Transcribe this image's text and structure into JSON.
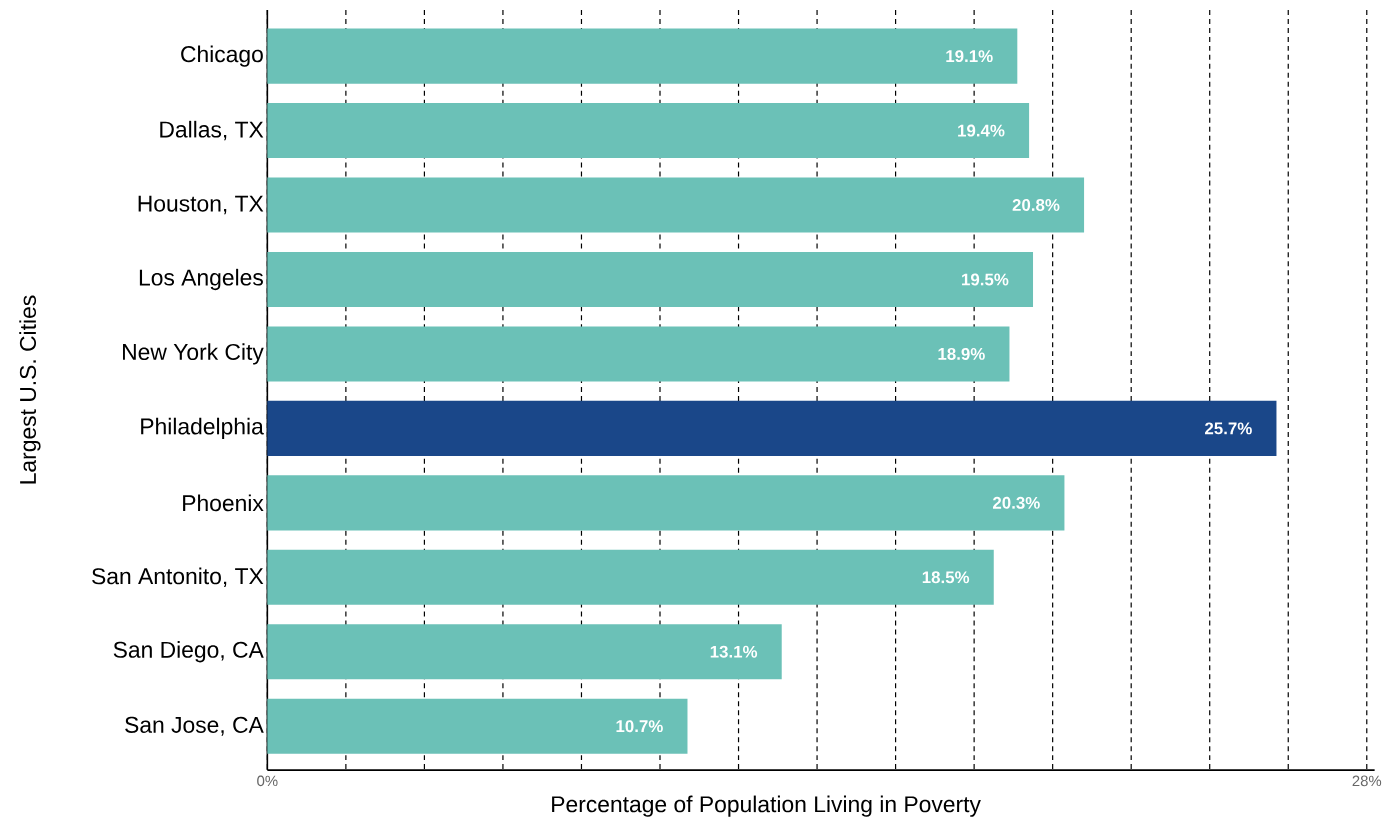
{
  "chart_data": {
    "type": "bar",
    "orientation": "horizontal",
    "xlabel": "Percentage of Population Living in Poverty",
    "ylabel": "Largest U.S. Cities",
    "categories": [
      "Chicago",
      "Dallas, TX",
      "Houston, TX",
      "Los Angeles",
      "New York City",
      "Philadelphia",
      "Phoenix",
      "San Antonito, TX",
      "San Diego, CA",
      "San Jose, CA"
    ],
    "values": [
      19.1,
      19.4,
      20.8,
      19.5,
      18.9,
      25.7,
      20.3,
      18.5,
      13.1,
      10.7
    ],
    "value_labels": [
      "19.1%",
      "19.4%",
      "20.8%",
      "19.5%",
      "18.9%",
      "25.7%",
      "20.3%",
      "18.5%",
      "13.1%",
      "10.7%"
    ],
    "colors": [
      "#6bc1b7",
      "#6bc1b7",
      "#6bc1b7",
      "#6bc1b7",
      "#6bc1b7",
      "#1a4789",
      "#6bc1b7",
      "#6bc1b7",
      "#6bc1b7",
      "#6bc1b7"
    ],
    "xlim": [
      0,
      28.2
    ],
    "xticks": [
      {
        "value": 0,
        "label": "0%"
      },
      {
        "value": 2,
        "label": null
      },
      {
        "value": 4,
        "label": null
      },
      {
        "value": 6,
        "label": null
      },
      {
        "value": 8,
        "label": null
      },
      {
        "value": 10,
        "label": null
      },
      {
        "value": 12,
        "label": null
      },
      {
        "value": 14,
        "label": null
      },
      {
        "value": 16,
        "label": null
      },
      {
        "value": 18,
        "label": null
      },
      {
        "value": 20,
        "label": null
      },
      {
        "value": 22,
        "label": null
      },
      {
        "value": 24,
        "label": null
      },
      {
        "value": 26,
        "label": null
      },
      {
        "value": 28,
        "label": "28%"
      }
    ],
    "grid": "x"
  }
}
